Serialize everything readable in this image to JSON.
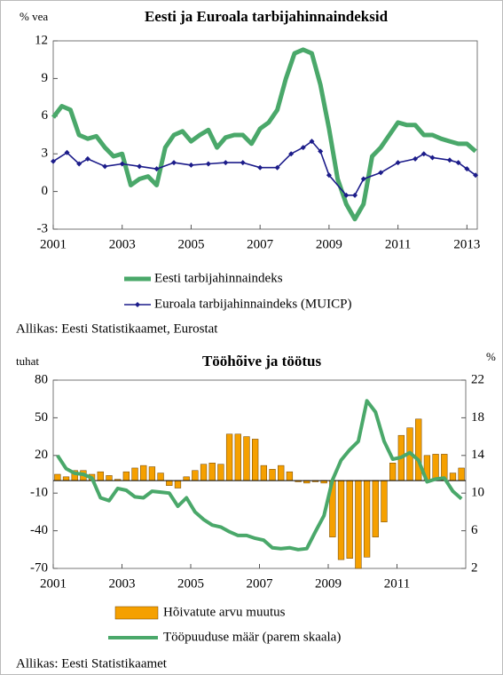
{
  "chart_data": [
    {
      "type": "line",
      "title": "Eesti ja Euroala tarbijahinnaindeksid",
      "ylabel": "% vea",
      "xlim": [
        2001,
        2013.3
      ],
      "xticks": [
        2001,
        2003,
        2005,
        2007,
        2009,
        2011,
        2013
      ],
      "ylim": [
        -3,
        12
      ],
      "yticks": [
        -3,
        0,
        3,
        6,
        9,
        12
      ],
      "series": [
        {
          "name": "Eesti tarbijahinnaindeks",
          "color": "#4aa86a",
          "marker": false,
          "x": [
            2001.0,
            2001.25,
            2001.5,
            2001.75,
            2002.0,
            2002.25,
            2002.5,
            2002.75,
            2003.0,
            2003.25,
            2003.5,
            2003.75,
            2004.0,
            2004.25,
            2004.5,
            2004.75,
            2005.0,
            2005.25,
            2005.5,
            2005.75,
            2006.0,
            2006.25,
            2006.5,
            2006.75,
            2007.0,
            2007.25,
            2007.5,
            2007.75,
            2008.0,
            2008.25,
            2008.5,
            2008.75,
            2009.0,
            2009.25,
            2009.5,
            2009.75,
            2010.0,
            2010.25,
            2010.5,
            2010.75,
            2011.0,
            2011.25,
            2011.5,
            2011.75,
            2012.0,
            2012.25,
            2012.5,
            2012.75,
            2013.0,
            2013.25
          ],
          "values": [
            5.9,
            6.8,
            6.5,
            4.5,
            4.2,
            4.4,
            3.5,
            2.8,
            3.0,
            0.5,
            1.0,
            1.2,
            0.5,
            3.5,
            4.5,
            4.8,
            4.0,
            4.5,
            4.9,
            3.5,
            4.3,
            4.5,
            4.5,
            3.8,
            5.0,
            5.5,
            6.5,
            9.0,
            11.0,
            11.3,
            11.0,
            8.5,
            5.0,
            1.0,
            -1.0,
            -2.2,
            -1.0,
            2.8,
            3.5,
            4.5,
            5.5,
            5.3,
            5.3,
            4.5,
            4.5,
            4.2,
            4.0,
            3.8,
            3.8,
            3.2
          ]
        },
        {
          "name": "Euroala tarbijahinnaindeks (MUICP)",
          "color": "#1c1c8a",
          "marker": true,
          "x": [
            2001.0,
            2001.4,
            2001.75,
            2002.0,
            2002.5,
            2003.0,
            2003.5,
            2004.0,
            2004.5,
            2005.0,
            2005.5,
            2006.0,
            2006.5,
            2007.0,
            2007.5,
            2007.9,
            2008.25,
            2008.5,
            2008.75,
            2009.0,
            2009.5,
            2009.75,
            2010.0,
            2010.5,
            2011.0,
            2011.5,
            2011.75,
            2012.0,
            2012.5,
            2012.75,
            2013.0,
            2013.25
          ],
          "values": [
            2.4,
            3.1,
            2.2,
            2.6,
            2.0,
            2.2,
            2.0,
            1.8,
            2.3,
            2.1,
            2.2,
            2.3,
            2.3,
            1.9,
            1.9,
            3.0,
            3.5,
            4.0,
            3.2,
            1.3,
            -0.3,
            -0.3,
            1.0,
            1.5,
            2.3,
            2.6,
            3.0,
            2.7,
            2.5,
            2.3,
            1.8,
            1.3
          ]
        }
      ],
      "source": "Allikas: Eesti Statistikaamet, Eurostat"
    },
    {
      "type": "combo",
      "title": "Tööhõive ja töötus",
      "ylabel": "tuhat",
      "y2label": "%",
      "xlim": [
        2001,
        2013
      ],
      "xticks": [
        2001,
        2003,
        2005,
        2007,
        2009,
        2011
      ],
      "ylim": [
        -70,
        80
      ],
      "yticks": [
        -70,
        -40,
        -10,
        20,
        50,
        80
      ],
      "y2lim": [
        2,
        22
      ],
      "y2ticks": [
        2,
        6,
        10,
        14,
        18,
        22
      ],
      "x": [
        2001.125,
        2001.375,
        2001.625,
        2001.875,
        2002.125,
        2002.375,
        2002.625,
        2002.875,
        2003.125,
        2003.375,
        2003.625,
        2003.875,
        2004.125,
        2004.375,
        2004.625,
        2004.875,
        2005.125,
        2005.375,
        2005.625,
        2005.875,
        2006.125,
        2006.375,
        2006.625,
        2006.875,
        2007.125,
        2007.375,
        2007.625,
        2007.875,
        2008.125,
        2008.375,
        2008.625,
        2008.875,
        2009.125,
        2009.375,
        2009.625,
        2009.875,
        2010.125,
        2010.375,
        2010.625,
        2010.875,
        2011.125,
        2011.375,
        2011.625,
        2011.875,
        2012.125,
        2012.375,
        2012.625,
        2012.875
      ],
      "series": [
        {
          "name": "Hõivatute arvu muutus",
          "color": "#f5a000",
          "kind": "bar",
          "values": [
            5,
            3,
            8,
            8,
            5,
            7,
            4,
            1,
            7,
            10,
            12,
            11,
            6,
            -4,
            -6,
            3,
            8,
            13,
            14,
            13,
            37,
            37,
            35,
            33,
            12,
            9,
            12,
            7,
            -1,
            -2,
            -1,
            -2,
            -45,
            -63,
            -62,
            -70,
            -61,
            -45,
            -33,
            14,
            36,
            42,
            49,
            20,
            21,
            21,
            6,
            10
          ]
        },
        {
          "name": "Tööpuuduse määr (parem skaala)",
          "color": "#4aa86a",
          "kind": "line",
          "axis": "y2",
          "values": [
            14.0,
            12.6,
            12.1,
            12.0,
            11.6,
            9.5,
            9.2,
            10.5,
            10.3,
            9.6,
            9.5,
            10.2,
            10.1,
            10.0,
            8.6,
            9.5,
            8.0,
            7.2,
            6.6,
            6.4,
            5.9,
            5.5,
            5.5,
            5.2,
            5.0,
            4.2,
            4.1,
            4.2,
            4.0,
            4.1,
            5.9,
            7.6,
            11.4,
            13.5,
            14.6,
            15.5,
            19.8,
            18.6,
            15.5,
            13.6,
            13.8,
            14.3,
            13.5,
            11.2,
            11.5,
            11.6,
            10.2,
            9.4
          ]
        }
      ],
      "source": "Allikas: Eesti Statistikaamet"
    }
  ]
}
